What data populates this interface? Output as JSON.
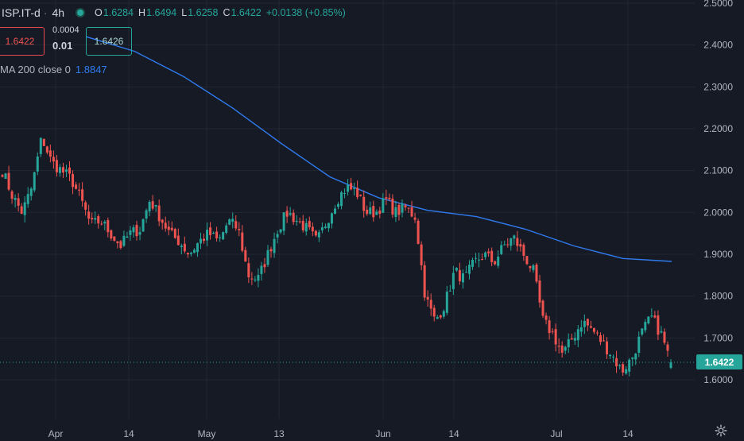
{
  "legend": {
    "symbol": "ISP.IT-d",
    "interval": "4h",
    "open_label": "O",
    "open": "1.6284",
    "high_label": "H",
    "high": "1.6494",
    "low_label": "L",
    "low": "1.6258",
    "close_label": "C",
    "close": "1.6422",
    "change": "+0.0138 (+0.85%)"
  },
  "trade": {
    "sell_price": "1.6422",
    "spread": "0.0004",
    "quantity": "0.01",
    "buy_price": "1.6426"
  },
  "indicator": {
    "label": "MA 200 close 0",
    "value": "1.8847"
  },
  "last_price": "1.6422",
  "colors": {
    "background": "#161a25",
    "up": "#26a69a",
    "down": "#ef5350",
    "ma": "#2f7bf0",
    "grid": "#232734",
    "axis_text": "#b2b5be"
  },
  "chart_data": {
    "type": "candlestick",
    "title": "",
    "xlabel": "",
    "ylabel": "",
    "ylim": [
      1.5,
      2.5
    ],
    "y_ticks": [
      "1.6000",
      "1.7000",
      "1.8000",
      "1.9000",
      "2.0000",
      "2.1000",
      "2.2000",
      "2.3000",
      "2.4000",
      "2.5000"
    ],
    "x_ticks": [
      "Apr",
      "14",
      "May",
      "13",
      "Jun",
      "14",
      "Jul",
      "14"
    ],
    "grid": true,
    "price_path": [
      2.1,
      2.04,
      2.0,
      2.06,
      2.18,
      2.12,
      2.1,
      2.08,
      2.03,
      1.97,
      1.98,
      1.95,
      1.92,
      1.95,
      1.96,
      2.03,
      1.99,
      1.95,
      1.93,
      1.9,
      1.93,
      1.95,
      1.93,
      1.98,
      1.96,
      1.85,
      1.84,
      1.9,
      1.96,
      2.0,
      1.98,
      1.96,
      1.93,
      1.98,
      2.03,
      2.06,
      2.05,
      2.0,
      2.0,
      2.03,
      2.0,
      2.01,
      1.99,
      1.8,
      1.74,
      1.78,
      1.86,
      1.84,
      1.88,
      1.9,
      1.88,
      1.92,
      1.94,
      1.9,
      1.86,
      1.74,
      1.71,
      1.66,
      1.7,
      1.74,
      1.72,
      1.69,
      1.66,
      1.62,
      1.65,
      1.71,
      1.75,
      1.71,
      1.64
    ],
    "ma200": [
      2.42,
      2.385,
      2.325,
      2.25,
      2.165,
      2.085,
      2.035,
      2.005,
      1.99,
      1.96,
      1.92,
      1.89,
      1.883
    ]
  }
}
